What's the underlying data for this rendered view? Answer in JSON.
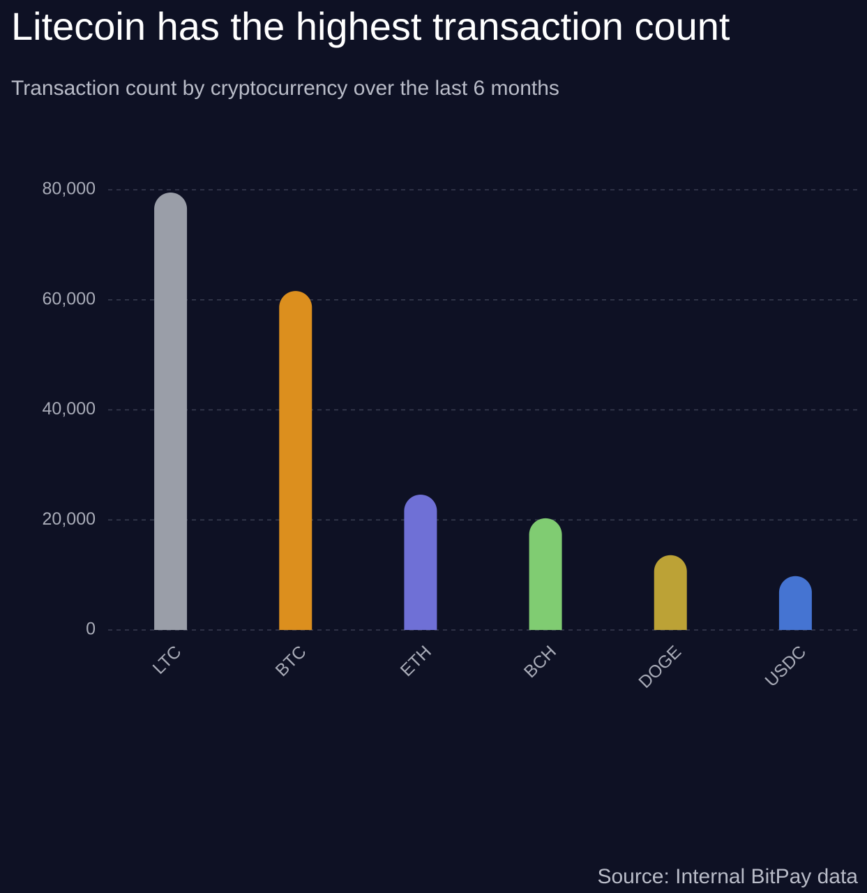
{
  "chart_data": {
    "type": "bar",
    "title": "Litecoin has the highest transaction count",
    "subtitle": "Transaction count by cryptocurrency over the last 6 months",
    "source": "Source: Internal BitPay data",
    "categories": [
      "LTC",
      "BTC",
      "ETH",
      "BCH",
      "DOGE",
      "USDC"
    ],
    "values": [
      79500,
      61600,
      24600,
      20300,
      13600,
      9800
    ],
    "colors": [
      "#9a9ea8",
      "#dc8f1e",
      "#6f70d6",
      "#80cc72",
      "#bca236",
      "#4574d2"
    ],
    "ylim": [
      0,
      80000
    ],
    "yticks": [
      0,
      {
        "value": 20000,
        "label": "20,000"
      },
      {
        "value": 40000,
        "label": "40,000"
      },
      {
        "value": 60000,
        "label": "60,000"
      },
      {
        "value": 80000,
        "label": "80,000"
      }
    ],
    "grid": true
  }
}
